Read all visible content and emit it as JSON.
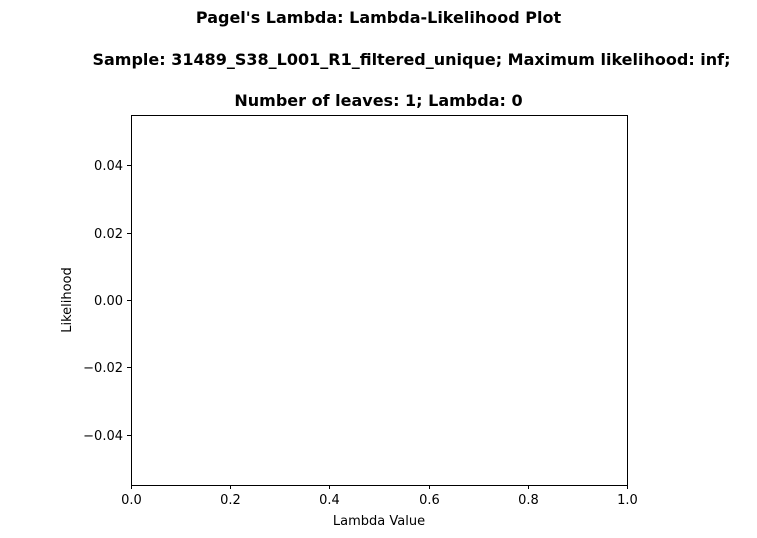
{
  "chart_data": {
    "type": "line",
    "title_lines": [
      "Pagel's Lambda: Lambda-Likelihood Plot",
      "Sample: 31489_S38_L001_R1_filtered_unique; Maximum likelihood: inf;",
      "Number of leaves: 1; Lambda: 0"
    ],
    "xlabel": "Lambda Value",
    "ylabel": "Likelihood",
    "xlim": [
      0.0,
      1.0
    ],
    "ylim": [
      -0.055,
      0.055
    ],
    "x_ticks": [
      {
        "value": 0.0,
        "label": "0.0"
      },
      {
        "value": 0.2,
        "label": "0.2"
      },
      {
        "value": 0.4,
        "label": "0.4"
      },
      {
        "value": 0.6,
        "label": "0.6"
      },
      {
        "value": 0.8,
        "label": "0.8"
      },
      {
        "value": 1.0,
        "label": "1.0"
      }
    ],
    "y_ticks": [
      {
        "value": 0.04,
        "label": "0.04"
      },
      {
        "value": 0.02,
        "label": "0.02"
      },
      {
        "value": 0.0,
        "label": "0.00"
      },
      {
        "value": -0.02,
        "label": "−0.02"
      },
      {
        "value": -0.04,
        "label": "−0.04"
      }
    ],
    "series": [
      {
        "x": [],
        "y": [],
        "color": "#1f77b4"
      }
    ],
    "grid": false
  }
}
